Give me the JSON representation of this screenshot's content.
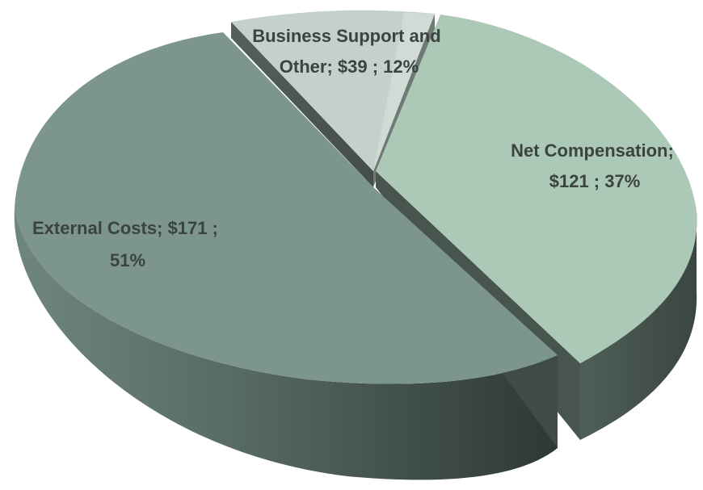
{
  "chart_data": {
    "type": "pie",
    "style": "3d-exploded",
    "title": "",
    "legend": "none",
    "slices": [
      {
        "name": "Net Compensation",
        "value": 121,
        "percent": 37,
        "label_line1": "Net Compensation;",
        "label_line2": "$121 ; 37%",
        "top_color": "#acc8b6",
        "side_color": "#4a5a52"
      },
      {
        "name": "External Costs",
        "value": 171,
        "percent": 51,
        "label_line1": "External Costs;  $171 ;",
        "label_line2": "51%",
        "top_color": "#7c958d",
        "side_color": "#3e4d48"
      },
      {
        "name": "Business Support and Other",
        "value": 39,
        "percent": 12,
        "label_line1": "Business Support and",
        "label_line2": "Other;  $39 ; 12%",
        "top_color": "#c3d0cb",
        "side_color": "#4f5955"
      }
    ]
  }
}
